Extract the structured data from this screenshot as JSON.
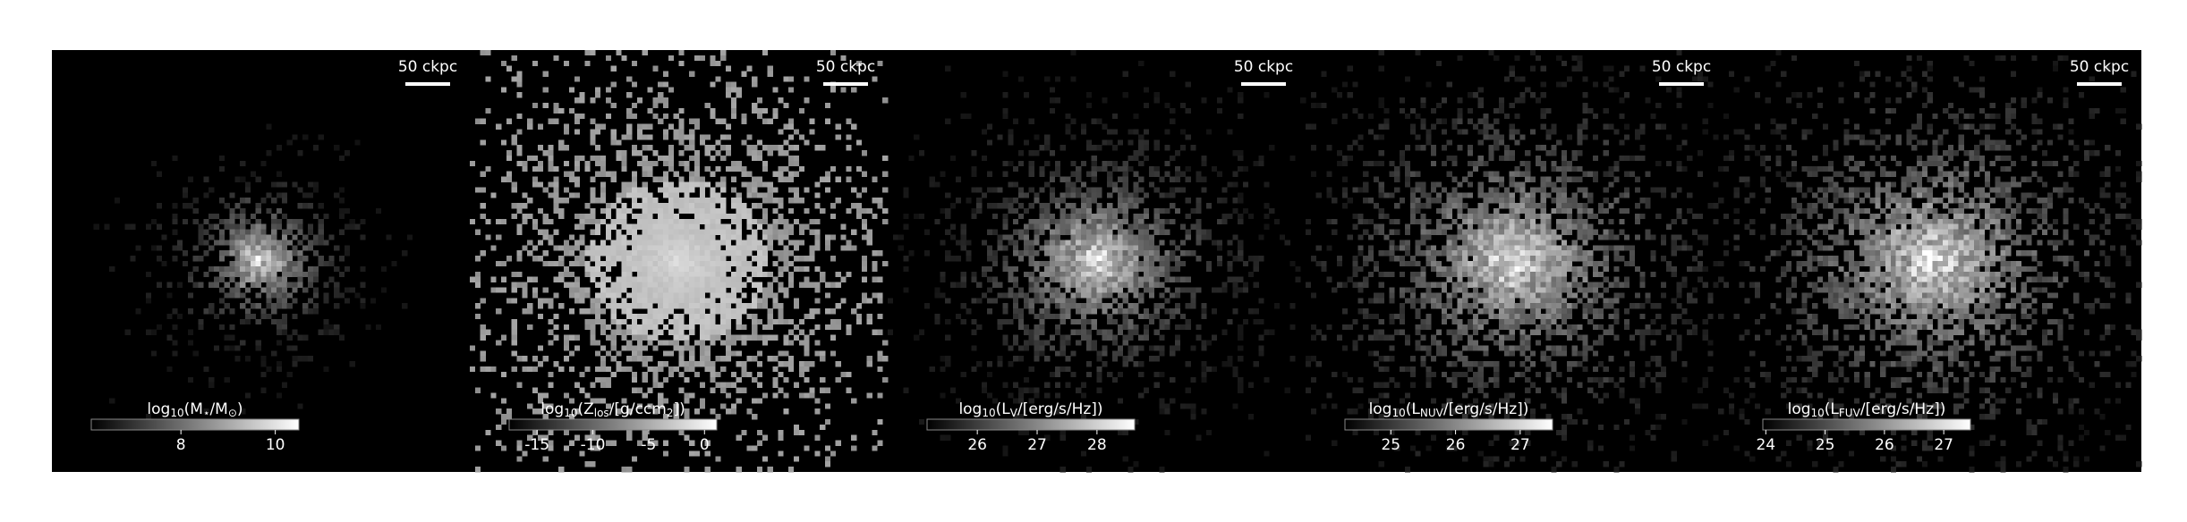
{
  "chart_data": [
    {
      "type": "image",
      "scale_label": "50 ckpc",
      "colorbar_label": [
        "log",
        "10",
        "(M",
        "⋆",
        "/M",
        "⊙",
        ")"
      ],
      "xlim": [
        6.1,
        10.5
      ],
      "xticks": [
        8,
        10
      ]
    },
    {
      "type": "image",
      "scale_label": "50 ckpc",
      "colorbar_label": [
        "log",
        "10",
        "(Z",
        "los",
        "/[g/ccm",
        "2",
        "])"
      ],
      "xlim": [
        -17.5,
        1.1
      ],
      "xticks": [
        -15,
        -10,
        -5,
        0
      ]
    },
    {
      "type": "image",
      "scale_label": "50 ckpc",
      "colorbar_label": [
        "log",
        "10",
        "(L",
        "V",
        "/[erg/s/Hz])"
      ],
      "xlim": [
        25.16,
        28.63
      ],
      "xticks": [
        26,
        27,
        28
      ]
    },
    {
      "type": "image",
      "scale_label": "50 ckpc",
      "colorbar_label": [
        "log",
        "10",
        "(L",
        "NUV",
        "/[erg/s/Hz])"
      ],
      "xlim": [
        24.29,
        27.5
      ],
      "xticks": [
        25,
        26,
        27
      ]
    },
    {
      "type": "image",
      "scale_label": "50 ckpc",
      "colorbar_label": [
        "log",
        "10",
        "(L",
        "FUV",
        "/[erg/s/Hz])"
      ],
      "xlim": [
        23.95,
        27.45
      ],
      "xticks": [
        24,
        25,
        26,
        27
      ]
    }
  ]
}
